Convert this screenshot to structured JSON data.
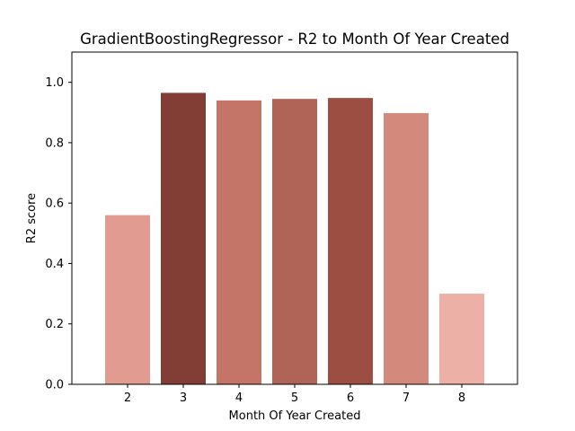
{
  "chart_data": {
    "type": "bar",
    "title": "GradientBoostingRegressor - R2 to Month Of Year Created",
    "xlabel": "Month Of Year Created",
    "ylabel": "R2 score",
    "categories": [
      "2",
      "3",
      "4",
      "5",
      "6",
      "7",
      "8"
    ],
    "values": [
      0.56,
      0.965,
      0.94,
      0.945,
      0.948,
      0.898,
      0.3
    ],
    "colors": [
      "#e19b90",
      "#823d34",
      "#c57568",
      "#b06357",
      "#9c4e42",
      "#d4897d",
      "#edb0a7"
    ],
    "ylim": [
      0,
      1.1
    ],
    "yticks": [
      0.0,
      0.2,
      0.4,
      0.6,
      0.8,
      1.0
    ],
    "ytick_labels": [
      "0.0",
      "0.2",
      "0.4",
      "0.6",
      "0.8",
      "1.0"
    ],
    "grid": false,
    "legend": "none"
  }
}
